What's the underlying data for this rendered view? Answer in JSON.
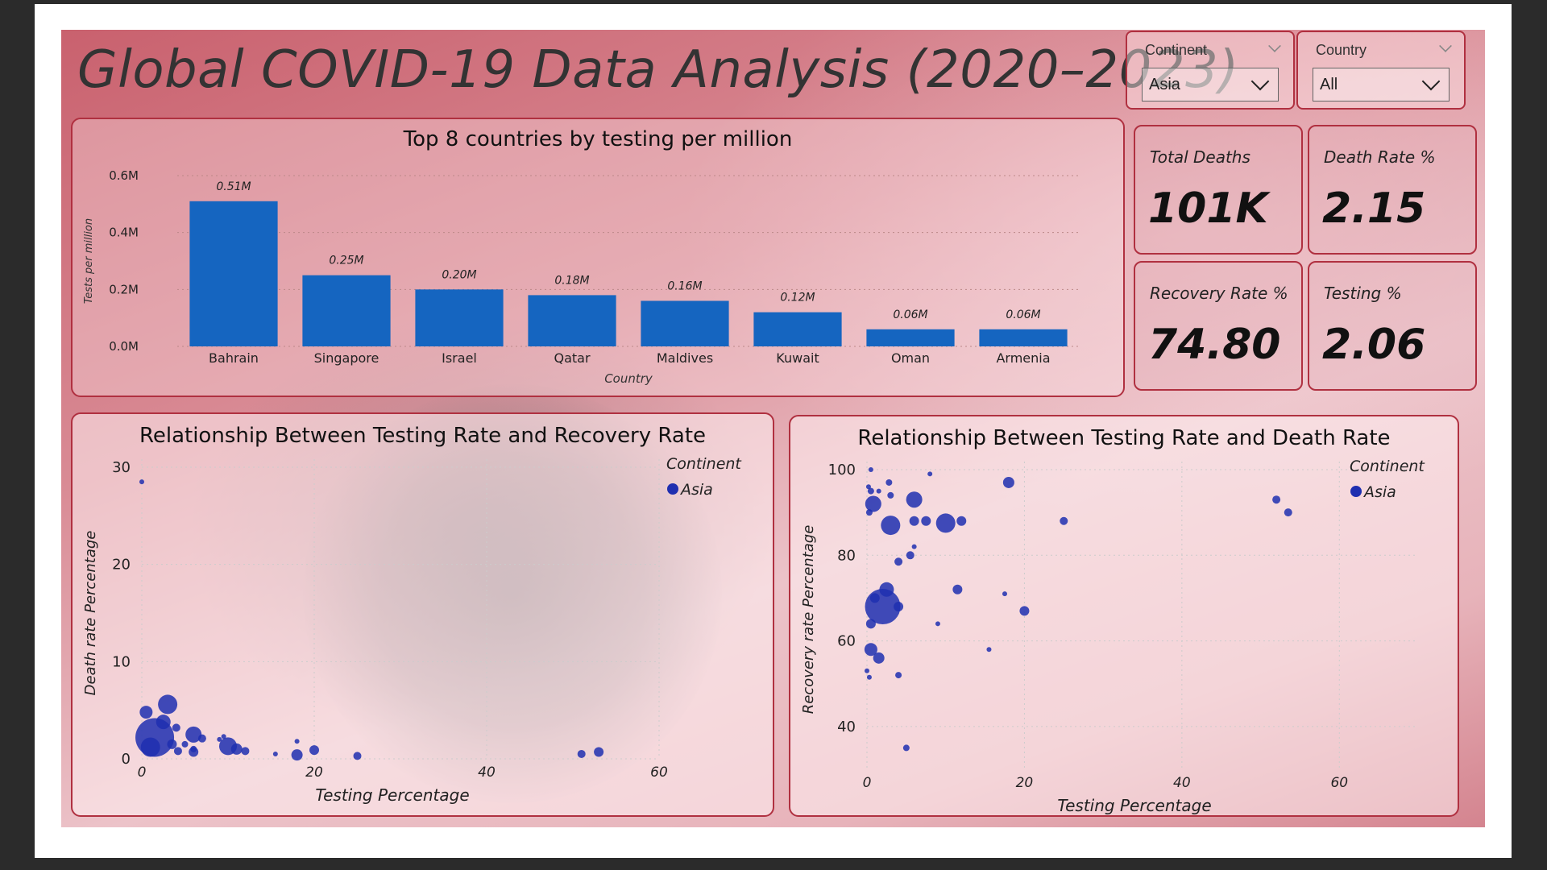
{
  "page": {
    "title": "Global COVID-19 Data Analysis (2020–2023)"
  },
  "filters": {
    "continent": {
      "label": "Continent",
      "value": "Asia"
    },
    "country": {
      "label": "Country",
      "value": "All"
    }
  },
  "kpis": [
    {
      "label": "Total Deaths",
      "value": "101K"
    },
    {
      "label": "Death Rate %",
      "value": "2.15"
    },
    {
      "label": "Recovery Rate %",
      "value": "74.80"
    },
    {
      "label": "Testing %",
      "value": "2.06"
    }
  ],
  "colors": {
    "accent_border": "#b03040",
    "bar_fill": "#1565c0",
    "dot_fill": "#1f2fb0"
  },
  "chart_data": [
    {
      "type": "bar",
      "title": "Top 8 countries by testing per million",
      "xlabel": "Country",
      "ylabel": "Tests per million",
      "categories": [
        "Bahrain",
        "Singapore",
        "Israel",
        "Qatar",
        "Maldives",
        "Kuwait",
        "Oman",
        "Armenia"
      ],
      "values": [
        0.51,
        0.25,
        0.2,
        0.18,
        0.16,
        0.12,
        0.06,
        0.06
      ],
      "value_labels": [
        "0.51M",
        "0.25M",
        "0.20M",
        "0.18M",
        "0.16M",
        "0.12M",
        "0.06M",
        "0.06M"
      ],
      "ylim": [
        0,
        0.6
      ],
      "yticks": [
        "0.0M",
        "0.2M",
        "0.4M",
        "0.6M"
      ],
      "ytick_values": [
        0,
        0.2,
        0.4,
        0.6
      ],
      "grid": true
    },
    {
      "type": "scatter",
      "title": "Relationship Between Testing Rate and Recovery Rate",
      "xlabel": "Testing Percentage",
      "ylabel": "Death rate Percentage",
      "xlim": [
        0,
        60
      ],
      "ylim": [
        0,
        30
      ],
      "xticks": [
        0,
        20,
        40,
        60
      ],
      "yticks": [
        0,
        10,
        20,
        30
      ],
      "legend_title": "Continent",
      "legend_position": "top-right",
      "series": [
        {
          "name": "Asia",
          "points": [
            {
              "x": 0,
              "y": 28.5,
              "s": 3
            },
            {
              "x": 0.5,
              "y": 4.8,
              "s": 8
            },
            {
              "x": 1.5,
              "y": 2.2,
              "s": 24
            },
            {
              "x": 1,
              "y": 1.2,
              "s": 12
            },
            {
              "x": 2.5,
              "y": 3.8,
              "s": 9
            },
            {
              "x": 3,
              "y": 5.6,
              "s": 12
            },
            {
              "x": 3.5,
              "y": 1.5,
              "s": 6
            },
            {
              "x": 4,
              "y": 3.2,
              "s": 5
            },
            {
              "x": 4.2,
              "y": 0.8,
              "s": 5
            },
            {
              "x": 5,
              "y": 1.5,
              "s": 4
            },
            {
              "x": 6,
              "y": 1.0,
              "s": 4
            },
            {
              "x": 6,
              "y": 2.5,
              "s": 10
            },
            {
              "x": 6,
              "y": 0.7,
              "s": 6
            },
            {
              "x": 7,
              "y": 2.1,
              "s": 5
            },
            {
              "x": 9,
              "y": 2.0,
              "s": 3
            },
            {
              "x": 10,
              "y": 1.3,
              "s": 11
            },
            {
              "x": 9.5,
              "y": 2.3,
              "s": 3
            },
            {
              "x": 11,
              "y": 1.0,
              "s": 7
            },
            {
              "x": 12,
              "y": 0.8,
              "s": 5
            },
            {
              "x": 15.5,
              "y": 0.5,
              "s": 3
            },
            {
              "x": 18,
              "y": 0.4,
              "s": 7
            },
            {
              "x": 18,
              "y": 1.8,
              "s": 3
            },
            {
              "x": 20,
              "y": 0.9,
              "s": 6
            },
            {
              "x": 25,
              "y": 0.3,
              "s": 5
            },
            {
              "x": 51,
              "y": 0.5,
              "s": 5
            },
            {
              "x": 53,
              "y": 0.7,
              "s": 6
            }
          ]
        }
      ]
    },
    {
      "type": "scatter",
      "title": "Relationship Between Testing Rate and Death Rate",
      "xlabel": "Testing Percentage",
      "ylabel": "Recovery rate Percentage",
      "xlim": [
        0,
        70
      ],
      "ylim": [
        30,
        100
      ],
      "xticks": [
        0,
        20,
        40,
        60
      ],
      "yticks": [
        40,
        60,
        80,
        100
      ],
      "legend_title": "Continent",
      "legend_position": "top-right",
      "series": [
        {
          "name": "Asia",
          "points": [
            {
              "x": 0.5,
              "y": 100,
              "s": 3
            },
            {
              "x": 0.2,
              "y": 96,
              "s": 3
            },
            {
              "x": 0.5,
              "y": 95,
              "s": 4
            },
            {
              "x": 2.8,
              "y": 97,
              "s": 4
            },
            {
              "x": 1.5,
              "y": 95,
              "s": 3
            },
            {
              "x": 0.8,
              "y": 92,
              "s": 10
            },
            {
              "x": 0.3,
              "y": 90,
              "s": 4
            },
            {
              "x": 3,
              "y": 94,
              "s": 4
            },
            {
              "x": 6,
              "y": 93,
              "s": 10
            },
            {
              "x": 3,
              "y": 87,
              "s": 12
            },
            {
              "x": 6,
              "y": 88,
              "s": 6
            },
            {
              "x": 7.5,
              "y": 88,
              "s": 6
            },
            {
              "x": 8,
              "y": 99,
              "s": 3
            },
            {
              "x": 10,
              "y": 87.5,
              "s": 12
            },
            {
              "x": 12,
              "y": 88,
              "s": 6
            },
            {
              "x": 18,
              "y": 97,
              "s": 7
            },
            {
              "x": 25,
              "y": 88,
              "s": 5
            },
            {
              "x": 52,
              "y": 93,
              "s": 5
            },
            {
              "x": 53.5,
              "y": 90,
              "s": 5
            },
            {
              "x": 6,
              "y": 82,
              "s": 3
            },
            {
              "x": 5.5,
              "y": 80,
              "s": 5
            },
            {
              "x": 4,
              "y": 78.5,
              "s": 5
            },
            {
              "x": 2,
              "y": 68,
              "s": 22
            },
            {
              "x": 2.5,
              "y": 72,
              "s": 9
            },
            {
              "x": 1,
              "y": 70,
              "s": 6
            },
            {
              "x": 4,
              "y": 68,
              "s": 6
            },
            {
              "x": 11.5,
              "y": 72,
              "s": 6
            },
            {
              "x": 17.5,
              "y": 71,
              "s": 3
            },
            {
              "x": 20,
              "y": 67,
              "s": 6
            },
            {
              "x": 9,
              "y": 64,
              "s": 3
            },
            {
              "x": 0.5,
              "y": 64,
              "s": 6
            },
            {
              "x": 0.5,
              "y": 58,
              "s": 8
            },
            {
              "x": 1.5,
              "y": 56,
              "s": 7
            },
            {
              "x": 0,
              "y": 53,
              "s": 3
            },
            {
              "x": 0.3,
              "y": 51.5,
              "s": 3
            },
            {
              "x": 4,
              "y": 52,
              "s": 4
            },
            {
              "x": 15.5,
              "y": 58,
              "s": 3
            },
            {
              "x": 5,
              "y": 35,
              "s": 4
            }
          ]
        }
      ]
    }
  ]
}
